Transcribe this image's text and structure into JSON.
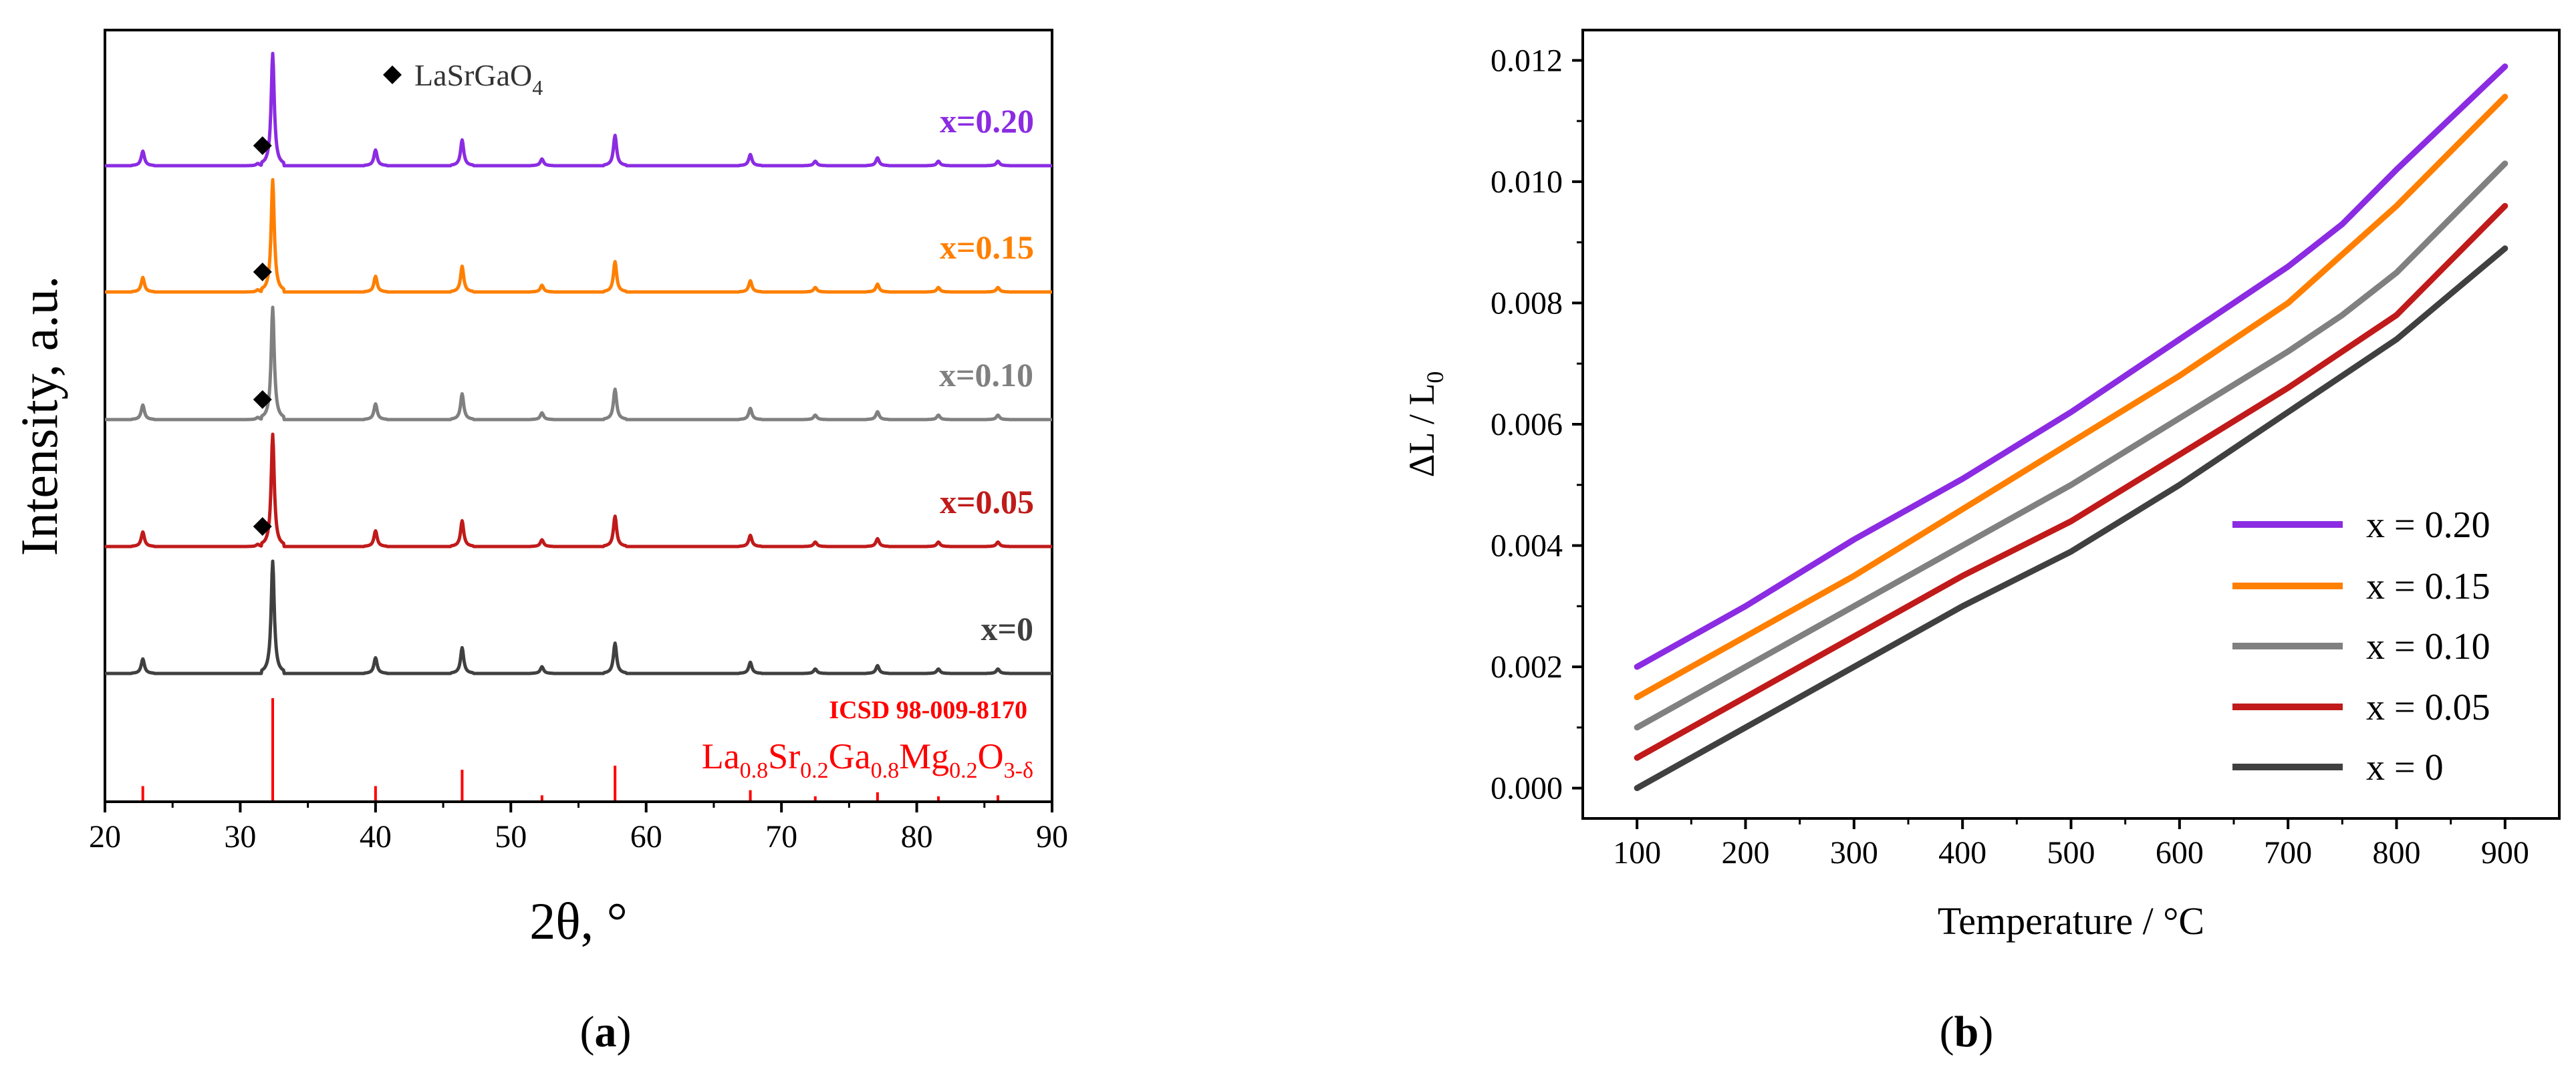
{
  "chart_data": [
    {
      "type": "line",
      "panel_label": "a",
      "xlabel": "2θ, °",
      "ylabel": "Intensity, a.u.",
      "xlim": [
        20,
        90
      ],
      "xticks": [
        "20",
        "30",
        "40",
        "50",
        "60",
        "70",
        "80",
        "90"
      ],
      "y_axis_ticks_shown": false,
      "legend_marker_label": "LaSrGaO",
      "legend_marker_sub": "4",
      "peak_positions": [
        22.8,
        32.4,
        40.0,
        46.4,
        52.3,
        57.7,
        67.7,
        72.5,
        77.1,
        81.6,
        86.0
      ],
      "peak_rel_heights": [
        0.13,
        1.0,
        0.14,
        0.23,
        0.06,
        0.27,
        0.1,
        0.04,
        0.07,
        0.04,
        0.04
      ],
      "series": [
        {
          "name": "x=0.20",
          "color": "#8B2BE2",
          "impurity_peak_2theta": 31.3
        },
        {
          "name": "x=0.15",
          "color": "#FF7F00",
          "impurity_peak_2theta": 31.3
        },
        {
          "name": "x=0.10",
          "color": "#808080",
          "impurity_peak_2theta": 31.3
        },
        {
          "name": "x=0.05",
          "color": "#C01A1A",
          "impurity_peak_2theta": 31.3
        },
        {
          "name": "x=0",
          "color": "#404040",
          "impurity_peak_2theta": null
        }
      ],
      "reference": {
        "label": "ICSD 98-009-8170",
        "formula_parts": [
          {
            "t": "La",
            "sub": false
          },
          {
            "t": "0.8",
            "sub": true
          },
          {
            "t": "Sr",
            "sub": false
          },
          {
            "t": "0.2",
            "sub": true
          },
          {
            "t": "Ga",
            "sub": false
          },
          {
            "t": "0.8",
            "sub": true
          },
          {
            "t": "Mg",
            "sub": false
          },
          {
            "t": "0.2",
            "sub": true
          },
          {
            "t": "O",
            "sub": false
          },
          {
            "t": "3-δ",
            "sub": true
          }
        ],
        "color": "#FF0000",
        "peaks": [
          22.8,
          32.4,
          40.0,
          46.4,
          52.3,
          57.7,
          67.7,
          72.5,
          77.1,
          81.6,
          86.0
        ],
        "rel_heights": [
          0.14,
          1.0,
          0.14,
          0.3,
          0.05,
          0.34,
          0.1,
          0.04,
          0.08,
          0.04,
          0.05
        ]
      }
    },
    {
      "type": "line",
      "panel_label": "b",
      "xlabel": "Temperature / °C",
      "ylabel": "ΔL / L",
      "ylabel_sub": "0",
      "xlim": [
        50,
        950
      ],
      "ylim": [
        -0.0005,
        0.0125
      ],
      "xticks": [
        100,
        200,
        300,
        400,
        500,
        600,
        700,
        800,
        900
      ],
      "yticks": [
        0.0,
        0.002,
        0.004,
        0.006,
        0.008,
        0.01,
        0.012
      ],
      "ytick_labels": [
        "0.000",
        "0.002",
        "0.004",
        "0.006",
        "0.008",
        "0.010",
        "0.012"
      ],
      "series": [
        {
          "name": "x = 0.20",
          "color": "#8B2BE2",
          "points": [
            [
              100,
              0.002
            ],
            [
              200,
              0.003
            ],
            [
              300,
              0.0041
            ],
            [
              400,
              0.0051
            ],
            [
              500,
              0.0062
            ],
            [
              600,
              0.0074
            ],
            [
              700,
              0.0086
            ],
            [
              750,
              0.0093
            ],
            [
              800,
              0.0102
            ],
            [
              900,
              0.0119
            ]
          ]
        },
        {
          "name": "x = 0.15",
          "color": "#FF7F00",
          "points": [
            [
              100,
              0.0015
            ],
            [
              200,
              0.0025
            ],
            [
              300,
              0.0035
            ],
            [
              400,
              0.0046
            ],
            [
              500,
              0.0057
            ],
            [
              600,
              0.0068
            ],
            [
              700,
              0.008
            ],
            [
              750,
              0.0088
            ],
            [
              800,
              0.0096
            ],
            [
              900,
              0.0114
            ]
          ]
        },
        {
          "name": "x = 0.10",
          "color": "#808080",
          "points": [
            [
              100,
              0.001
            ],
            [
              200,
              0.002
            ],
            [
              300,
              0.003
            ],
            [
              400,
              0.004
            ],
            [
              500,
              0.005
            ],
            [
              600,
              0.0061
            ],
            [
              700,
              0.0072
            ],
            [
              750,
              0.0078
            ],
            [
              800,
              0.0085
            ],
            [
              900,
              0.0103
            ]
          ]
        },
        {
          "name": "x = 0.05",
          "color": "#C01A1A",
          "points": [
            [
              100,
              0.0005
            ],
            [
              200,
              0.0015
            ],
            [
              300,
              0.0025
            ],
            [
              400,
              0.0035
            ],
            [
              500,
              0.0044
            ],
            [
              600,
              0.0055
            ],
            [
              700,
              0.0066
            ],
            [
              800,
              0.0078
            ],
            [
              900,
              0.0096
            ]
          ]
        },
        {
          "name": "x = 0",
          "color": "#404040",
          "points": [
            [
              100,
              0.0
            ],
            [
              200,
              0.001
            ],
            [
              300,
              0.002
            ],
            [
              400,
              0.003
            ],
            [
              500,
              0.0039
            ],
            [
              600,
              0.005
            ],
            [
              700,
              0.0062
            ],
            [
              800,
              0.0074
            ],
            [
              900,
              0.0089
            ]
          ]
        }
      ]
    }
  ]
}
